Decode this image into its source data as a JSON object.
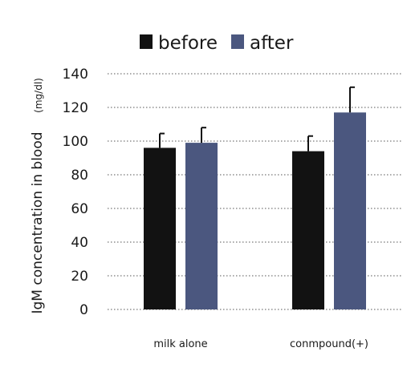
{
  "chart_data": {
    "type": "bar",
    "categories": [
      "milk alone",
      "conmpound(+)"
    ],
    "series": [
      {
        "name": "before",
        "color": "#121212",
        "values": [
          96,
          94
        ],
        "errors": [
          8.5,
          9
        ]
      },
      {
        "name": "after",
        "color": "#4b577f",
        "values": [
          99,
          117
        ],
        "errors": [
          9,
          15
        ]
      }
    ],
    "xlabel": "",
    "ylabel": "IgM concentration in blood",
    "ylabel_unit": "(mg/dl)",
    "ylim": [
      0,
      140
    ],
    "yticks": [
      0,
      20,
      40,
      60,
      80,
      100,
      120,
      140
    ],
    "grid": true,
    "grid_style": "dotted",
    "legend_position": "top"
  }
}
